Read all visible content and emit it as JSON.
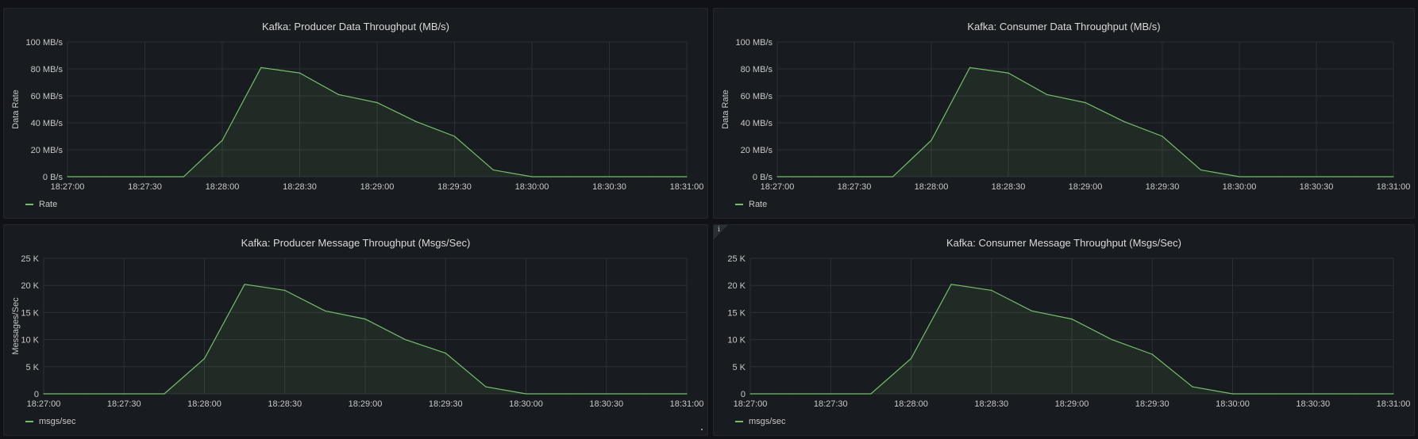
{
  "panels": [
    {
      "id": "producer-data",
      "title": "Kafka: Producer Data Throughput (MB/s)",
      "ylabel": "Data Rate",
      "legend": "Rate",
      "has_info": false
    },
    {
      "id": "consumer-data",
      "title": "Kafka: Consumer Data Throughput (MB/s)",
      "ylabel": "Data Rate",
      "legend": "Rate",
      "has_info": false
    },
    {
      "id": "producer-msgs",
      "title": "Kafka: Producer Message Throughput (Msgs/Sec)",
      "ylabel": "Messages/Sec",
      "legend": "msgs/sec",
      "has_info": false
    },
    {
      "id": "consumer-msgs",
      "title": "Kafka: Consumer Message Throughput (Msgs/Sec)",
      "ylabel": "",
      "legend": "msgs/sec",
      "has_info": true,
      "info_glyph": "i"
    }
  ],
  "colors": {
    "line": "#73bf69",
    "grid": "#2c3035",
    "axis_text": "#c7c8ca",
    "panel_bg": "#181b1f"
  },
  "chart_data": [
    {
      "type": "area",
      "title": "Kafka: Producer Data Throughput (MB/s)",
      "ylabel": "Data Rate",
      "x": [
        "18:27:00",
        "18:27:15",
        "18:27:30",
        "18:27:45",
        "18:28:00",
        "18:28:15",
        "18:28:30",
        "18:28:45",
        "18:29:00",
        "18:29:15",
        "18:29:30",
        "18:29:45",
        "18:30:00",
        "18:30:15",
        "18:30:30",
        "18:30:45",
        "18:31:00"
      ],
      "series": [
        {
          "name": "Rate",
          "values": [
            0,
            0,
            0,
            0,
            27,
            81,
            77,
            61,
            55,
            41,
            30,
            5,
            0,
            0,
            0,
            0,
            0
          ]
        }
      ],
      "yticks": [
        "0 B/s",
        "20 MB/s",
        "40 MB/s",
        "60 MB/s",
        "80 MB/s",
        "100 MB/s"
      ],
      "ylim": [
        0,
        100
      ],
      "xticks": [
        "18:27:00",
        "18:27:30",
        "18:28:00",
        "18:28:30",
        "18:29:00",
        "18:29:30",
        "18:30:00",
        "18:30:30",
        "18:31:00"
      ],
      "grid": true,
      "legend": "bottom-left"
    },
    {
      "type": "area",
      "title": "Kafka: Consumer Data Throughput (MB/s)",
      "ylabel": "Data Rate",
      "x": [
        "18:27:00",
        "18:27:15",
        "18:27:30",
        "18:27:45",
        "18:28:00",
        "18:28:15",
        "18:28:30",
        "18:28:45",
        "18:29:00",
        "18:29:15",
        "18:29:30",
        "18:29:45",
        "18:30:00",
        "18:30:15",
        "18:30:30",
        "18:30:45",
        "18:31:00"
      ],
      "series": [
        {
          "name": "Rate",
          "values": [
            0,
            0,
            0,
            0,
            27,
            81,
            77,
            61,
            55,
            41,
            30,
            5,
            0,
            0,
            0,
            0,
            0
          ]
        }
      ],
      "yticks": [
        "0 B/s",
        "20 MB/s",
        "40 MB/s",
        "60 MB/s",
        "80 MB/s",
        "100 MB/s"
      ],
      "ylim": [
        0,
        100
      ],
      "xticks": [
        "18:27:00",
        "18:27:30",
        "18:28:00",
        "18:28:30",
        "18:29:00",
        "18:29:30",
        "18:30:00",
        "18:30:30",
        "18:31:00"
      ],
      "grid": true,
      "legend": "bottom-left"
    },
    {
      "type": "area",
      "title": "Kafka: Producer Message Throughput (Msgs/Sec)",
      "ylabel": "Messages/Sec",
      "x": [
        "18:27:00",
        "18:27:15",
        "18:27:30",
        "18:27:45",
        "18:28:00",
        "18:28:15",
        "18:28:30",
        "18:28:45",
        "18:29:00",
        "18:29:15",
        "18:29:30",
        "18:29:45",
        "18:30:00",
        "18:30:15",
        "18:30:30",
        "18:30:45",
        "18:31:00"
      ],
      "series": [
        {
          "name": "msgs/sec",
          "values": [
            0,
            0,
            0,
            0,
            6500,
            20200,
            19100,
            15300,
            13800,
            10000,
            7500,
            1300,
            0,
            0,
            0,
            0,
            0
          ]
        }
      ],
      "yticks": [
        "0",
        "5 K",
        "10 K",
        "15 K",
        "20 K",
        "25 K"
      ],
      "ylim": [
        0,
        25000
      ],
      "xticks": [
        "18:27:00",
        "18:27:30",
        "18:28:00",
        "18:28:30",
        "18:29:00",
        "18:29:30",
        "18:30:00",
        "18:30:30",
        "18:31:00"
      ],
      "grid": true,
      "legend": "bottom-left"
    },
    {
      "type": "area",
      "title": "Kafka: Consumer Message Throughput (Msgs/Sec)",
      "ylabel": "",
      "x": [
        "18:27:00",
        "18:27:15",
        "18:27:30",
        "18:27:45",
        "18:28:00",
        "18:28:15",
        "18:28:30",
        "18:28:45",
        "18:29:00",
        "18:29:15",
        "18:29:30",
        "18:29:45",
        "18:30:00",
        "18:30:15",
        "18:30:30",
        "18:30:45",
        "18:31:00"
      ],
      "series": [
        {
          "name": "msgs/sec",
          "values": [
            0,
            0,
            0,
            0,
            6500,
            20200,
            19100,
            15300,
            13800,
            10000,
            7300,
            1300,
            0,
            0,
            0,
            0,
            0
          ]
        }
      ],
      "yticks": [
        "0",
        "5 K",
        "10 K",
        "15 K",
        "20 K",
        "25 K"
      ],
      "ylim": [
        0,
        25000
      ],
      "xticks": [
        "18:27:00",
        "18:27:30",
        "18:28:00",
        "18:28:30",
        "18:29:00",
        "18:29:30",
        "18:30:00",
        "18:30:30",
        "18:31:00"
      ],
      "grid": true,
      "legend": "bottom-left"
    }
  ]
}
